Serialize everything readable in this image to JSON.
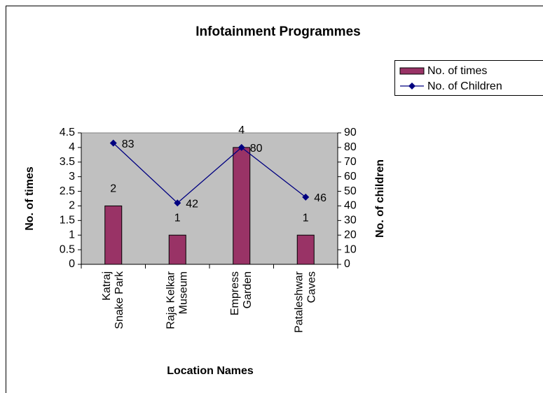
{
  "chart_data": {
    "type": "bar-line",
    "title": "Infotainment Programmes",
    "x_label": "Location Names",
    "y_label": "No. of times",
    "y2_label": "No. of children",
    "categories": [
      "Katraj Snake Park",
      "Raja Kelkar Museum",
      "Empress Garden",
      "Pataleshwar Caves"
    ],
    "series": [
      {
        "name": "No. of times",
        "type": "bar",
        "color": "#993366",
        "values": [
          2,
          1,
          4,
          1
        ]
      },
      {
        "name": "No. of Children",
        "type": "line",
        "axis": "y2",
        "color": "#000080",
        "values": [
          83,
          42,
          80,
          46
        ]
      }
    ],
    "ylim": [
      0,
      4.5
    ],
    "yticks": [
      0,
      0.5,
      1,
      1.5,
      2,
      2.5,
      3,
      3.5,
      4,
      4.5
    ],
    "y2lim": [
      0,
      90
    ],
    "y2ticks": [
      0,
      10,
      20,
      30,
      40,
      50,
      60,
      70,
      80,
      90
    ],
    "plot_background": "#c0c0c0",
    "grid": false,
    "legend": "right"
  }
}
